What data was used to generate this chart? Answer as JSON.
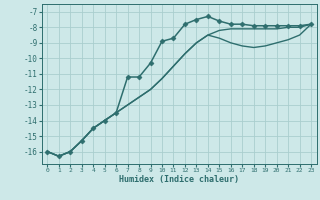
{
  "xlabel": "Humidex (Indice chaleur)",
  "ylabel": "",
  "background_color": "#cde8e8",
  "grid_color": "#aacece",
  "line_color": "#2e6e6e",
  "xlim": [
    -0.5,
    23.5
  ],
  "ylim": [
    -16.8,
    -6.5
  ],
  "yticks": [
    -16,
    -15,
    -14,
    -13,
    -12,
    -11,
    -10,
    -9,
    -8,
    -7
  ],
  "xticks": [
    0,
    1,
    2,
    3,
    4,
    5,
    6,
    7,
    8,
    9,
    10,
    11,
    12,
    13,
    14,
    15,
    16,
    17,
    18,
    19,
    20,
    21,
    22,
    23
  ],
  "series": [
    {
      "x": [
        0,
        1,
        2,
        3,
        4,
        5,
        6,
        7,
        8,
        9,
        10,
        11,
        12,
        13,
        14,
        15,
        16,
        17,
        18,
        19,
        20,
        21,
        22,
        23
      ],
      "y": [
        -16.0,
        -16.3,
        -16.0,
        -15.3,
        -14.5,
        -14.0,
        -13.5,
        -11.2,
        -11.2,
        -10.3,
        -8.9,
        -8.7,
        -7.8,
        -7.5,
        -7.3,
        -7.6,
        -7.8,
        -7.8,
        -7.9,
        -7.9,
        -7.9,
        -7.9,
        -7.9,
        -7.8
      ],
      "marker": "D",
      "markersize": 2.5,
      "linewidth": 1.1
    },
    {
      "x": [
        0,
        1,
        2,
        3,
        4,
        5,
        6,
        7,
        8,
        9,
        10,
        11,
        12,
        13,
        14,
        15,
        16,
        17,
        18,
        19,
        20,
        21,
        22,
        23
      ],
      "y": [
        -16.0,
        -16.3,
        -16.0,
        -15.3,
        -14.5,
        -14.0,
        -13.5,
        -13.0,
        -12.5,
        -12.0,
        -11.3,
        -10.5,
        -9.7,
        -9.0,
        -8.5,
        -8.2,
        -8.1,
        -8.1,
        -8.1,
        -8.1,
        -8.1,
        -8.0,
        -8.0,
        -7.8
      ],
      "marker": null,
      "markersize": 0,
      "linewidth": 1.0
    },
    {
      "x": [
        0,
        1,
        2,
        3,
        4,
        5,
        6,
        7,
        8,
        9,
        10,
        11,
        12,
        13,
        14,
        15,
        16,
        17,
        18,
        19,
        20,
        21,
        22,
        23
      ],
      "y": [
        -16.0,
        -16.3,
        -16.0,
        -15.3,
        -14.5,
        -14.0,
        -13.5,
        -13.0,
        -12.5,
        -12.0,
        -11.3,
        -10.5,
        -9.7,
        -9.0,
        -8.5,
        -8.7,
        -9.0,
        -9.2,
        -9.3,
        -9.2,
        -9.0,
        -8.8,
        -8.5,
        -7.8
      ],
      "marker": null,
      "markersize": 0,
      "linewidth": 1.0
    }
  ]
}
